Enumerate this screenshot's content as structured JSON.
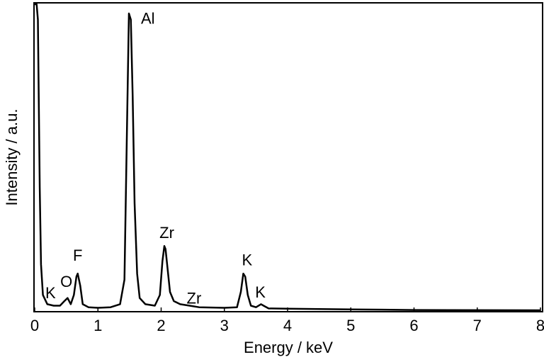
{
  "chart_data": {
    "type": "line",
    "xlabel": "Energy / keV",
    "ylabel": "Intensity / a.u.",
    "xlim": [
      0,
      8
    ],
    "xticks": [
      0,
      1,
      2,
      3,
      4,
      5,
      6,
      7,
      8
    ],
    "ylim": [
      0,
      100
    ],
    "series": [
      {
        "color": "#000000",
        "x": [
          0.0,
          0.03,
          0.05,
          0.08,
          0.1,
          0.13,
          0.2,
          0.3,
          0.4,
          0.47,
          0.52,
          0.57,
          0.62,
          0.66,
          0.68,
          0.72,
          0.76,
          0.85,
          1.0,
          1.2,
          1.35,
          1.42,
          1.46,
          1.49,
          1.52,
          1.55,
          1.58,
          1.62,
          1.66,
          1.75,
          1.9,
          1.98,
          2.02,
          2.05,
          2.07,
          2.1,
          2.14,
          2.2,
          2.3,
          2.45,
          2.6,
          3.0,
          3.2,
          3.26,
          3.3,
          3.33,
          3.37,
          3.42,
          3.5,
          3.58,
          3.62,
          3.7,
          4.0,
          5.0,
          5.5,
          6.0,
          8.0
        ],
        "values": [
          100,
          100,
          95,
          40,
          15,
          5,
          2,
          1.5,
          1.5,
          3,
          4,
          2,
          5,
          11,
          12,
          8,
          2,
          1,
          0.8,
          1,
          2,
          10,
          60,
          97,
          95,
          70,
          35,
          12,
          4,
          2,
          1.5,
          5,
          16,
          21,
          20,
          14,
          6,
          3,
          2,
          1.5,
          1,
          0.8,
          1,
          6,
          12,
          11,
          5,
          1.5,
          1,
          2,
          1.5,
          0.6,
          0.5,
          0.3,
          0.2,
          0.1,
          0
        ]
      }
    ],
    "annotations": [
      {
        "text": "Al",
        "x": 1.79,
        "y": 95
      },
      {
        "text": "Zr",
        "x": 2.09,
        "y": 25
      },
      {
        "text": "Zr",
        "x": 2.52,
        "y": 3.5
      },
      {
        "text": "K",
        "x": 3.36,
        "y": 16
      },
      {
        "text": "K",
        "x": 3.57,
        "y": 5.5
      },
      {
        "text": "K",
        "x": 0.25,
        "y": 5.3
      },
      {
        "text": "O",
        "x": 0.5,
        "y": 9
      },
      {
        "text": "F",
        "x": 0.68,
        "y": 17.6
      }
    ]
  }
}
